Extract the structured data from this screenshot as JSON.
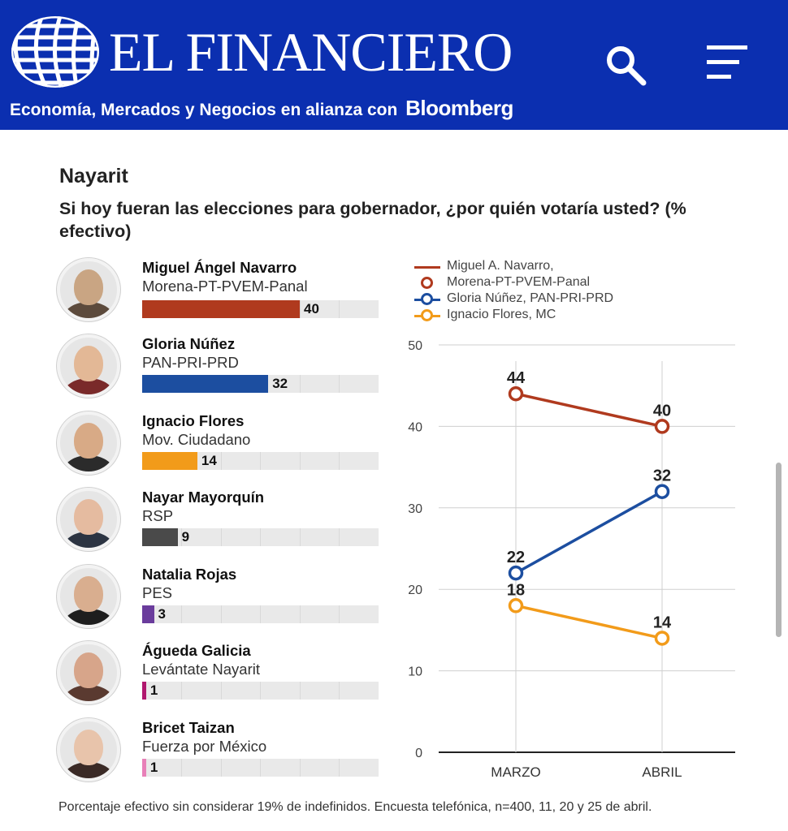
{
  "header": {
    "brand": "EL FINANCIERO",
    "tagline": "Economía, Mercados y Negocios en alianza con",
    "partner": "Bloomberg",
    "search_icon": "search-icon",
    "menu_icon": "hamburger-menu-icon",
    "bg_color": "#0b2fb0"
  },
  "state": "Nayarit",
  "question": "Si hoy fueran las elecciones para gobernador, ¿por quién votaría usted? (% efectivo)",
  "candidates": [
    {
      "name": "Miguel Ángel Navarro",
      "party": "Morena-PT-PVEM-Panal",
      "value": 40,
      "color": "#b03a1e"
    },
    {
      "name": "Gloria Núñez",
      "party": "PAN-PRI-PRD",
      "value": 32,
      "color": "#1c4ea0"
    },
    {
      "name": "Ignacio Flores",
      "party": "Mov. Ciudadano",
      "value": 14,
      "color": "#f29b1a"
    },
    {
      "name": "Nayar Mayorquín",
      "party": "RSP",
      "value": 9,
      "color": "#4a4a4a"
    },
    {
      "name": "Natalia Rojas",
      "party": "PES",
      "value": 3,
      "color": "#6a3c9c"
    },
    {
      "name": "Águeda Galicia",
      "party": "Levántate Nayarit",
      "value": 1,
      "color": "#b0186e"
    },
    {
      "name": "Bricet Taizan",
      "party": "Fuerza por México",
      "value": 1,
      "color": "#e880b8"
    }
  ],
  "chart_data": [
    {
      "type": "bar",
      "categories": [
        "Miguel Ángel Navarro",
        "Gloria Núñez",
        "Ignacio Flores",
        "Nayar Mayorquín",
        "Natalia Rojas",
        "Águeda Galicia",
        "Bricet Taizan"
      ],
      "values": [
        40,
        32,
        14,
        9,
        3,
        1,
        1
      ],
      "xlim": [
        0,
        60
      ],
      "grid": true
    },
    {
      "type": "line",
      "x": [
        "MARZO",
        "ABRIL"
      ],
      "series": [
        {
          "name": "Miguel A. Navarro, Morena-PT-PVEM-Panal",
          "values": [
            44,
            40
          ],
          "color": "#b03a1e"
        },
        {
          "name": "Gloria Núñez, PAN-PRI-PRD",
          "values": [
            22,
            32
          ],
          "color": "#1c4ea0"
        },
        {
          "name": "Ignacio Flores, MC",
          "values": [
            18,
            14
          ],
          "color": "#f29b1a"
        }
      ],
      "ylim": [
        0,
        50
      ],
      "yticks": [
        0,
        10,
        20,
        30,
        40,
        50
      ],
      "legend": "top",
      "grid": true
    }
  ],
  "legend": [
    {
      "line1": "Miguel A. Navarro,",
      "line2": "Morena-PT-PVEM-Panal",
      "color": "#b03a1e"
    },
    {
      "line1": "Gloria Núñez, PAN-PRI-PRD",
      "color": "#1c4ea0"
    },
    {
      "line1": "Ignacio Flores, MC",
      "color": "#f29b1a"
    }
  ],
  "footnote": "Porcentaje efectivo sin considerar 19% de indefinidos. Encuesta telefónica, n=400, 11, 20 y 25 de abril."
}
